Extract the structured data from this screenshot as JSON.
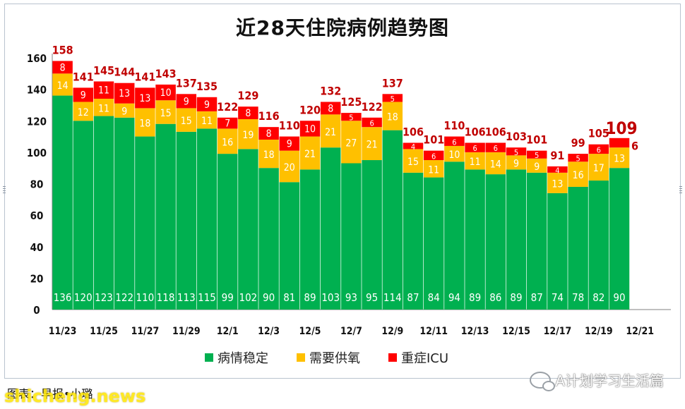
{
  "title": "近28天住院病例趋势图",
  "caption": "图表：早报•小璐",
  "watermark": "shicheng.news",
  "wechat_account": "A计划学习生活篇",
  "chart_data": {
    "type": "bar",
    "stacked": true,
    "title": "近28天住院病例趋势图",
    "x_tick_labels": [
      "11/23",
      "11/25",
      "11/27",
      "11/29",
      "12/1",
      "12/3",
      "12/5",
      "12/7",
      "12/9",
      "12/11",
      "12/13",
      "12/15",
      "12/17",
      "12/19",
      "12/21"
    ],
    "ylim": [
      0,
      160
    ],
    "yticks": [
      0,
      20,
      40,
      60,
      80,
      100,
      120,
      140,
      160
    ],
    "legend_position": "bottom",
    "grid": false,
    "colors": {
      "病情稳定": "#00b050",
      "需要供氧": "#ffc000",
      "重症ICU": "#ff0000"
    },
    "totals": [
      158,
      141,
      145,
      144,
      141,
      143,
      137,
      135,
      122,
      129,
      116,
      110,
      120,
      132,
      125,
      122,
      137,
      106,
      101,
      110,
      106,
      106,
      103,
      101,
      91,
      99,
      105,
      109
    ],
    "series": [
      {
        "name": "病情稳定",
        "values": [
          136,
          120,
          123,
          122,
          110,
          118,
          113,
          115,
          99,
          102,
          90,
          81,
          89,
          103,
          93,
          95,
          114,
          87,
          84,
          94,
          89,
          86,
          89,
          87,
          74,
          78,
          82,
          90
        ]
      },
      {
        "name": "需要供氧",
        "values": [
          14,
          12,
          11,
          9,
          18,
          15,
          15,
          11,
          16,
          19,
          18,
          20,
          21,
          21,
          27,
          21,
          18,
          15,
          11,
          10,
          11,
          14,
          9,
          9,
          13,
          16,
          17,
          13
        ]
      },
      {
        "name": "重症ICU",
        "values": [
          8,
          9,
          11,
          13,
          13,
          10,
          9,
          9,
          7,
          8,
          8,
          9,
          10,
          8,
          5,
          6,
          5,
          4,
          6,
          6,
          6,
          6,
          5,
          5,
          4,
          5,
          6,
          6
        ]
      }
    ]
  },
  "legend": {
    "stable": "病情稳定",
    "oxygen": "需要供氧",
    "icu": "重症ICU"
  }
}
